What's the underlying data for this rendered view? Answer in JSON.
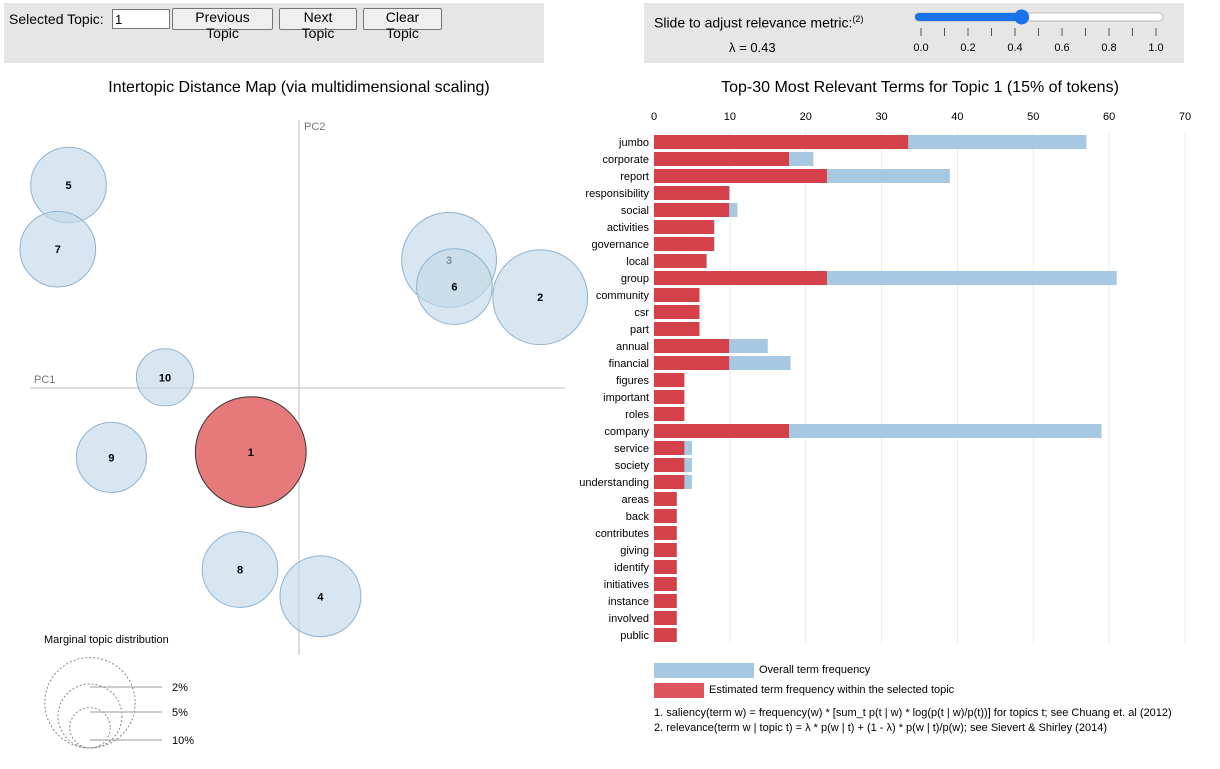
{
  "controls": {
    "selected_topic_label": "Selected Topic:",
    "selected_topic_value": "1",
    "previous_label": "Previous Topic",
    "next_label": "Next Topic",
    "clear_label": "Clear Topic"
  },
  "lambda": {
    "label": "Slide to adjust relevance metric:",
    "footnote_ref": "(2)",
    "value_text": "λ = 0.43",
    "value": 0.43,
    "tick_labels": [
      "0.0",
      "0.2",
      "0.4",
      "0.6",
      "0.8",
      "1.0"
    ]
  },
  "left": {
    "title": "Intertopic Distance Map (via multidimensional scaling)",
    "pc1": "PC1",
    "pc2": "PC2",
    "marginal_title": "Marginal topic distribution",
    "marginal_labels": [
      "2%",
      "5%",
      "10%"
    ]
  },
  "right": {
    "title": "Top-30 Most Relevant Terms for Topic 1 (15% of tokens)",
    "legend_overall": "Overall term frequency",
    "legend_estimated": "Estimated term frequency within the selected topic",
    "note1": "1. saliency(term w) = frequency(w) * [sum_t p(t | w) * log(p(t | w)/p(t))] for topics t; see Chuang et. al (2012)",
    "note2": "2. relevance(term w | topic t) = λ * p(w | t) + (1 - λ) * p(w | t)/p(w); see Sievert & Shirley (2014)"
  },
  "colors": {
    "overall": "#a6c8e1",
    "estimated": "#d4414b",
    "topic_circle": "#c2d8e8",
    "selected_circle": "#e57373"
  },
  "topics": [
    {
      "label": "1",
      "pc1": -0.09,
      "pc2": -0.12,
      "size_pct": 15,
      "selected": true
    },
    {
      "label": "2",
      "pc1": 0.45,
      "pc2": 0.17,
      "size_pct": 11
    },
    {
      "label": "3",
      "pc1": 0.28,
      "pc2": 0.24,
      "size_pct": 11
    },
    {
      "label": "4",
      "pc1": 0.04,
      "pc2": -0.39,
      "size_pct": 8
    },
    {
      "label": "5",
      "pc1": -0.43,
      "pc2": 0.38,
      "size_pct": 7
    },
    {
      "label": "6",
      "pc1": 0.29,
      "pc2": 0.19,
      "size_pct": 7
    },
    {
      "label": "7",
      "pc1": -0.45,
      "pc2": 0.26,
      "size_pct": 7
    },
    {
      "label": "8",
      "pc1": -0.11,
      "pc2": -0.34,
      "size_pct": 7
    },
    {
      "label": "9",
      "pc1": -0.35,
      "pc2": -0.13,
      "size_pct": 6
    },
    {
      "label": "10",
      "pc1": -0.25,
      "pc2": 0.02,
      "size_pct": 4
    }
  ],
  "chart_data": {
    "type": "bar",
    "title": "Top-30 Most Relevant Terms for Topic 1 (15% of tokens)",
    "x_ticks": [
      0,
      10,
      20,
      30,
      40,
      50,
      60,
      70
    ],
    "xlim": [
      0,
      70
    ],
    "categories": [
      "jumbo",
      "corporate",
      "report",
      "responsibility",
      "social",
      "activities",
      "governance",
      "local",
      "group",
      "community",
      "csr",
      "part",
      "annual",
      "financial",
      "figures",
      "important",
      "roles",
      "company",
      "service",
      "society",
      "understanding",
      "areas",
      "back",
      "contributes",
      "giving",
      "identify",
      "initiatives",
      "instance",
      "involved",
      "public"
    ],
    "series": [
      {
        "name": "Overall term frequency",
        "values": [
          57,
          21,
          39,
          10,
          11,
          8,
          8,
          7,
          61,
          6,
          6,
          6,
          15,
          18,
          4,
          4,
          4,
          59,
          5,
          5,
          5,
          3,
          3,
          3,
          3,
          3,
          3,
          3,
          3,
          3
        ]
      },
      {
        "name": "Estimated term frequency within the selected topic",
        "values": [
          33.5,
          17.8,
          22.8,
          9.9,
          9.9,
          7.9,
          7.9,
          6.9,
          22.8,
          6,
          6,
          6,
          9.9,
          9.9,
          4,
          4,
          4,
          17.8,
          4,
          4,
          4,
          3,
          3,
          3,
          3,
          3,
          3,
          3,
          3,
          3
        ]
      }
    ]
  }
}
